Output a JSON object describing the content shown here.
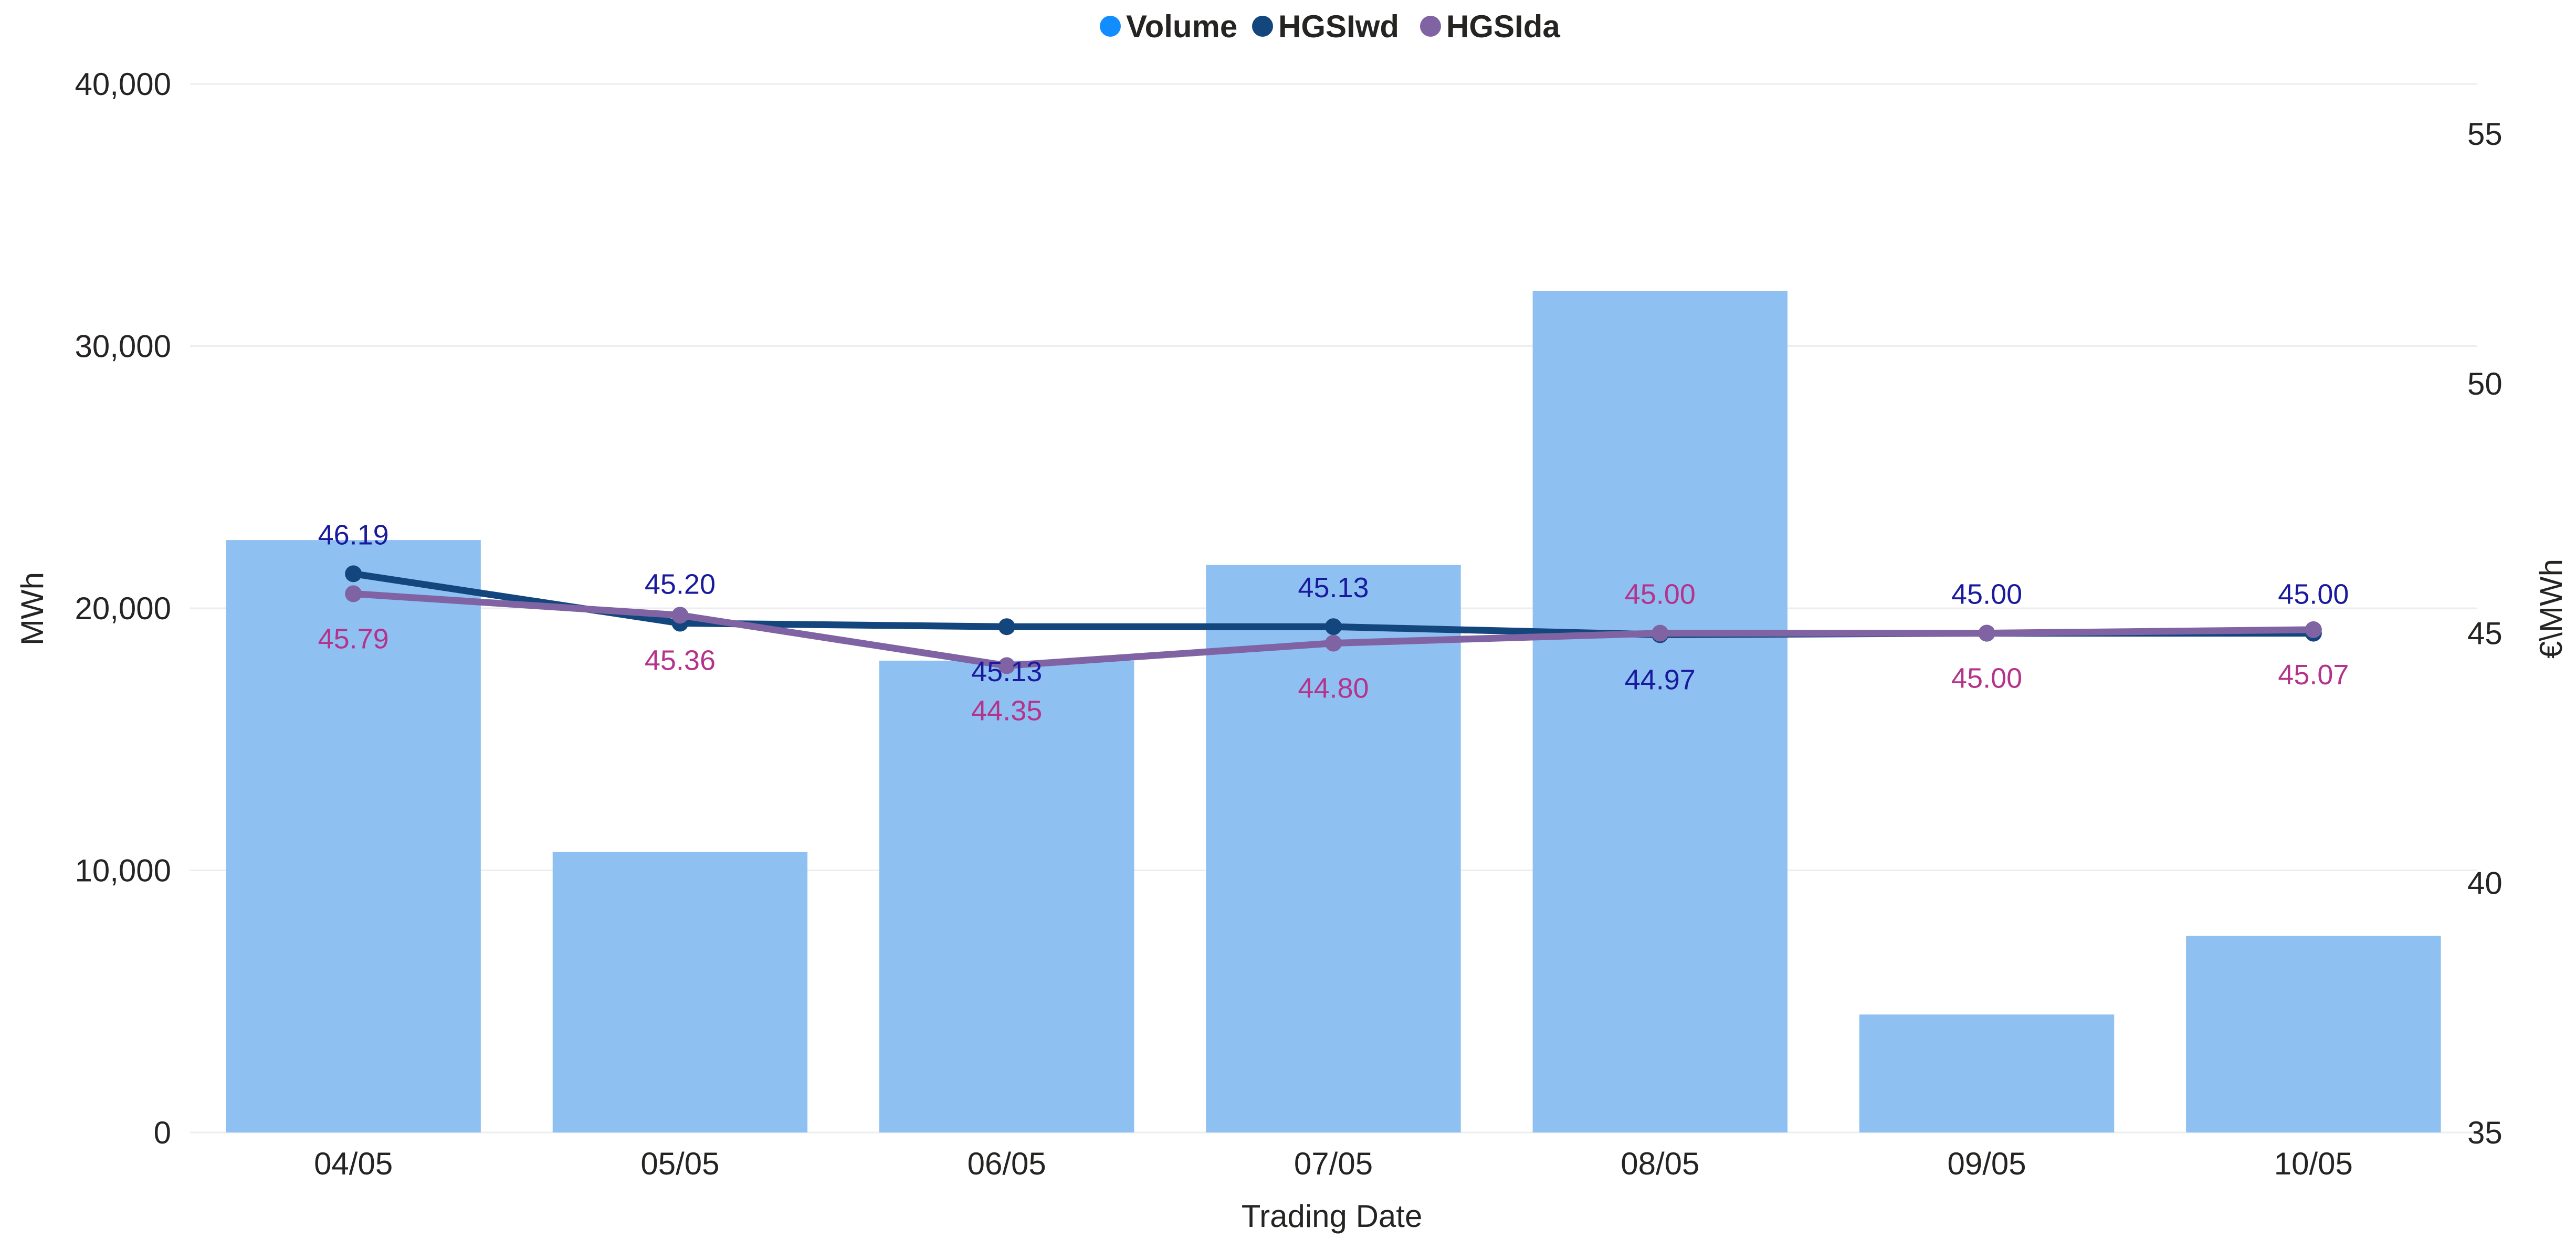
{
  "chart_data": {
    "type": "bar+line",
    "title": "",
    "categories": [
      "04/05",
      "05/05",
      "06/05",
      "07/05",
      "08/05",
      "09/05",
      "10/05"
    ],
    "xlabel": "Trading Date",
    "ylabel": "MWh",
    "y2label": "€\\MWh",
    "ylim": [
      0,
      40000
    ],
    "y2lim": [
      35,
      56
    ],
    "yticks": [
      0,
      10000,
      20000,
      30000,
      40000
    ],
    "ytick_labels": [
      "0",
      "10,000",
      "20,000",
      "30,000",
      "40,000"
    ],
    "y2ticks": [
      35,
      40,
      45,
      50,
      55
    ],
    "y2tick_labels": [
      "35",
      "40",
      "45",
      "50",
      "55"
    ],
    "grid": true,
    "legend_position": "top-center",
    "series": [
      {
        "name": "Volume",
        "kind": "bar",
        "axis": "left",
        "color": "#8EC0F2",
        "legend_color": "#118DFF",
        "values": [
          22600,
          10700,
          18000,
          21650,
          32100,
          4500,
          7500
        ]
      },
      {
        "name": "HGSIwd",
        "kind": "line",
        "axis": "right",
        "color": "#12467D",
        "label_color": "#1A1A9E",
        "values": [
          46.19,
          45.2,
          45.13,
          45.13,
          44.97,
          45.0,
          45.0
        ],
        "labels": [
          "46.19",
          "45.20",
          "45.13",
          "45.13",
          "44.97",
          "45.00",
          "45.00"
        ],
        "label_positions": [
          "above",
          "above",
          "below",
          "above",
          "below",
          "above",
          "above"
        ]
      },
      {
        "name": "HGSIda",
        "kind": "line",
        "axis": "right",
        "color": "#8063A3",
        "label_color": "#B5338A",
        "values": [
          45.79,
          45.36,
          44.35,
          44.8,
          45.0,
          45.0,
          45.07
        ],
        "labels": [
          "45.79",
          "45.36",
          "44.35",
          "44.80",
          "45.00",
          "45.00",
          "45.07"
        ],
        "label_positions": [
          "below",
          "below",
          "below",
          "below",
          "above",
          "below",
          "below"
        ]
      }
    ]
  }
}
